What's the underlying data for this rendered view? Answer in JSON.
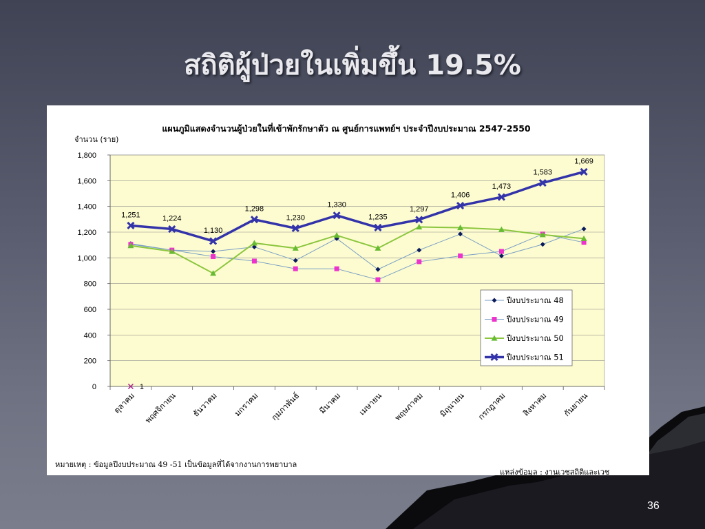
{
  "slide": {
    "title": "สถิติผู้ป่วยในเพิ่มขึ้น 19.5%",
    "page_number": "36"
  },
  "colors": {
    "plot_background": "#fdfcd0",
    "series48": "#7a9fc4",
    "series49": "#7a9fc4",
    "series50": "#8cc63f",
    "series51": "#3333aa",
    "marker48": "#0a1a5a",
    "marker49": "#ee33cc",
    "marker50": "#66bb33"
  },
  "footnote": "หมายเหตุ : ข้อมูลปีงบประมาณ 49 -51  เป็นข้อมูลที่ได้จากงานการพยาบาล",
  "source": "แหล่งข้อมูล : งานเวชสถิติและเวช",
  "chart_data": {
    "type": "line",
    "title": "แผนภูมิแสดงจำนวนผู้ป่วยในที่เข้าพักรักษาตัว ณ ศูนย์การแพทย์ฯ ประจำปีงบประมาณ 2547-2550",
    "ylabel": "จำนวน (ราย)",
    "xlabel": "",
    "ylim": [
      0,
      1800
    ],
    "yticks": [
      0,
      200,
      400,
      600,
      800,
      1000,
      1200,
      1400,
      1600,
      1800
    ],
    "ytick_labels": [
      "0",
      "200",
      "400",
      "600",
      "800",
      "1,000",
      "1,200",
      "1,400",
      "1,600",
      "1,800"
    ],
    "categories": [
      "ตุลาคม",
      "พฤศจิกายน",
      "ธันวาคม",
      "มกราคม",
      "กุมภาพันธ์",
      "มีนาคม",
      "เมษายน",
      "พฤษภาคม",
      "มิถุนายน",
      "กรกฎาคม",
      "สิงหาคม",
      "กันยายน"
    ],
    "grid": true,
    "legend_position": "right",
    "series": [
      {
        "name": "ปีงบประมาณ 48",
        "values": [
          1110,
          1060,
          1050,
          1085,
          980,
          1150,
          910,
          1060,
          1185,
          1015,
          1105,
          1225
        ]
      },
      {
        "name": "ปีงบประมาณ 49",
        "values": [
          1105,
          1060,
          1010,
          975,
          915,
          915,
          830,
          970,
          1015,
          1050,
          1185,
          1120
        ]
      },
      {
        "name": "ปีงบประมาณ 50",
        "values": [
          1095,
          1050,
          880,
          1115,
          1075,
          1175,
          1075,
          1240,
          1235,
          1220,
          1180,
          1150
        ]
      },
      {
        "name": "ปีงบประมาณ 51",
        "values": [
          1251,
          1224,
          1130,
          1298,
          1230,
          1330,
          1235,
          1297,
          1406,
          1473,
          1583,
          1669
        ],
        "labels": [
          "1,251",
          "1,224",
          "1,130",
          "1,298",
          "1,230",
          "1,330",
          "1,235",
          "1,297",
          "1,406",
          "1,473",
          "1,583",
          "1,669"
        ]
      }
    ],
    "annotation": {
      "label": "1",
      "x": "ตุลาคม",
      "y": 0
    }
  }
}
